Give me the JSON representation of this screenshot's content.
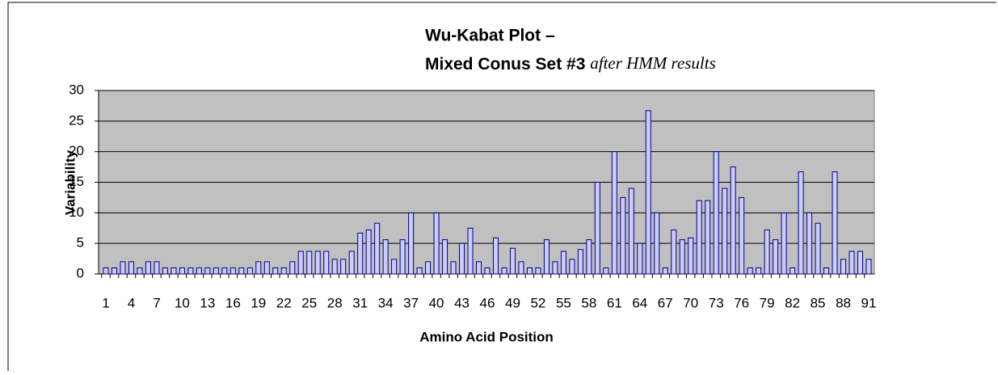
{
  "chart_data": {
    "type": "bar",
    "title": "Wu-Kabat Plot –",
    "subtitle": "Mixed Conus Set #3",
    "subtitle_note": "after HMM results",
    "x_label": "Amino Acid Position",
    "y_label": "Variability",
    "categories": [
      "1",
      null,
      null,
      "4",
      null,
      null,
      "7",
      null,
      null,
      "10",
      null,
      null,
      "13",
      null,
      null,
      "16",
      null,
      null,
      "19",
      null,
      null,
      "22",
      null,
      null,
      "25",
      null,
      null,
      "28",
      null,
      null,
      "31",
      null,
      null,
      "34",
      null,
      null,
      "37",
      null,
      null,
      "40",
      null,
      null,
      "43",
      null,
      null,
      "46",
      null,
      null,
      "49",
      null,
      null,
      "52",
      null,
      null,
      "55",
      null,
      null,
      "58",
      null,
      null,
      "61",
      null,
      null,
      "64",
      null,
      null,
      "67",
      null,
      null,
      "70",
      null,
      null,
      "73",
      null,
      null,
      "76",
      null,
      null,
      "79",
      null,
      null,
      "82",
      null,
      null,
      "85",
      null,
      null,
      "88",
      null,
      null,
      "91"
    ],
    "values": [
      1,
      1,
      2,
      2,
      1,
      2,
      2,
      1,
      1,
      1,
      1,
      1,
      1,
      1,
      1,
      1,
      1,
      1,
      2,
      2,
      1,
      1,
      2,
      3.7,
      3.7,
      3.7,
      3.7,
      2.4,
      2.4,
      3.7,
      6.7,
      7.2,
      8.3,
      5.6,
      2.4,
      5.6,
      10,
      1,
      2,
      10,
      5.6,
      2,
      5,
      7.5,
      2,
      1,
      5.9,
      1,
      4.2,
      2,
      1,
      1,
      5.6,
      2,
      3.7,
      2.4,
      4,
      5.6,
      15,
      1,
      20,
      12.5,
      14,
      5,
      26.7,
      10,
      1,
      7.2,
      5.6,
      5.9,
      12,
      12,
      20,
      14,
      17.5,
      12.5,
      1,
      1,
      7.2,
      5.6,
      10,
      1,
      16.7,
      10,
      8.3,
      1,
      16.7,
      2.4,
      3.7,
      3.7,
      2.4
    ],
    "color": "#ccccff",
    "edge_color": "#000080",
    "plot_background": "#c0c0c0",
    "ylim": [
      0,
      30
    ],
    "yticks": [
      0,
      5,
      10,
      15,
      20,
      25,
      30
    ],
    "grid": true
  }
}
